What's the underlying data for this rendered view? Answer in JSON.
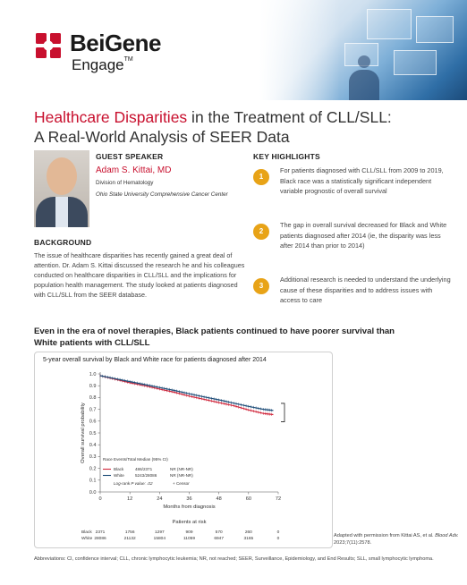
{
  "brand": {
    "name": "BeiGene",
    "sub": "Engage",
    "trademark": "TM",
    "colors": {
      "primary_red": "#c8102e",
      "accent_orange": "#e8a317",
      "black_line": "#1f4e79",
      "white_line": "#d0263b"
    }
  },
  "title": {
    "accent": "Healthcare Disparities",
    "rest_line1": " in the Treatment of CLL/SLL:",
    "line2": "A Real-World Analysis of SEER Data"
  },
  "guest": {
    "heading": "GUEST SPEAKER",
    "name": "Adam S. Kittai, MD",
    "division": "Division of Hematology",
    "institution": "Ohio State University Comprehensive Cancer Center"
  },
  "background": {
    "heading": "BACKGROUND",
    "text": "The issue of healthcare disparities has recently gained a great deal of attention. Dr. Adam S. Kittai discussed the research he and his colleagues conducted on healthcare disparities in CLL/SLL and the implications for population health management. The study looked at patients diagnosed with CLL/SLL from the SEER database."
  },
  "highlights": {
    "heading": "KEY HIGHLIGHTS",
    "items": [
      {
        "num": "1",
        "text": "For patients diagnosed with CLL/SLL from 2009 to 2019, Black race was a statistically significant independent variable prognostic of overall survival"
      },
      {
        "num": "2",
        "text": "The gap in overall survival decreased for Black and White patients diagnosed after 2014 (ie, the disparity was less after 2014 than prior to 2014)"
      },
      {
        "num": "3",
        "text": "Additional research is needed to understand the underlying cause of these disparities and to address issues with access to care"
      }
    ]
  },
  "chart_heading": "Even in the era of novel therapies, Black patients continued to have poorer survival than White patients with CLL/SLL",
  "chart_data": {
    "type": "line",
    "title": "5-year overall survival by Black and White race for patients diagnosed after 2014",
    "xlabel": "Months from diagnosis",
    "ylabel": "Overall survival probability",
    "x_ticks": [
      0,
      12,
      24,
      36,
      48,
      60,
      72
    ],
    "y_ticks": [
      "1.0",
      "0.9",
      "0.8",
      "0.7",
      "0.6",
      "0.5",
      "0.4",
      "0.3",
      "0.2",
      "0.1",
      "0.0"
    ],
    "xlim": [
      0,
      72
    ],
    "ylim": [
      0,
      1
    ],
    "series": [
      {
        "name": "Black",
        "color": "#d0263b",
        "x": [
          0,
          6,
          12,
          18,
          24,
          30,
          36,
          42,
          48,
          54,
          60,
          66,
          70
        ],
        "y": [
          0.985,
          0.955,
          0.925,
          0.9,
          0.872,
          0.845,
          0.812,
          0.785,
          0.757,
          0.73,
          0.695,
          0.665,
          0.655
        ]
      },
      {
        "name": "White",
        "color": "#1f4e79",
        "x": [
          0,
          6,
          12,
          18,
          24,
          30,
          36,
          42,
          48,
          54,
          60,
          66,
          70
        ],
        "y": [
          0.985,
          0.96,
          0.935,
          0.91,
          0.885,
          0.86,
          0.832,
          0.805,
          0.78,
          0.752,
          0.725,
          0.7,
          0.69
        ]
      }
    ],
    "legend": {
      "header": "Race  Events/Total  Median (95% CI)",
      "rows": [
        {
          "race": "Black",
          "events": "486/2371",
          "median": "NR (NR-NR)"
        },
        {
          "race": "White",
          "events": "5243/28086",
          "median": "NR (NR-NR)"
        }
      ],
      "logrank": "Log-rank P value: .02",
      "censor": "+ Censor"
    },
    "at_risk": {
      "label": "Patients at risk",
      "rows": [
        {
          "name": "Black",
          "values": [
            "2371",
            "1756",
            "1297",
            "909",
            "570",
            "260",
            "0"
          ]
        },
        {
          "name": "White",
          "values": [
            "28086",
            "21132",
            "15804",
            "11059",
            "6947",
            "3165",
            "0"
          ]
        }
      ]
    }
  },
  "attribution": {
    "prefix": "Adapted with permission from Kittai AS, et al.",
    "journal": "Blood Adv.",
    "suffix": "2023;7(11):2578."
  },
  "abbreviations": "Abbreviations: CI, confidence interval; CLL, chronic lymphocytic leukemia; NR, not reached; SEER, Surveillance, Epidemiology, and End Results; SLL, small lymphocytic lymphoma."
}
